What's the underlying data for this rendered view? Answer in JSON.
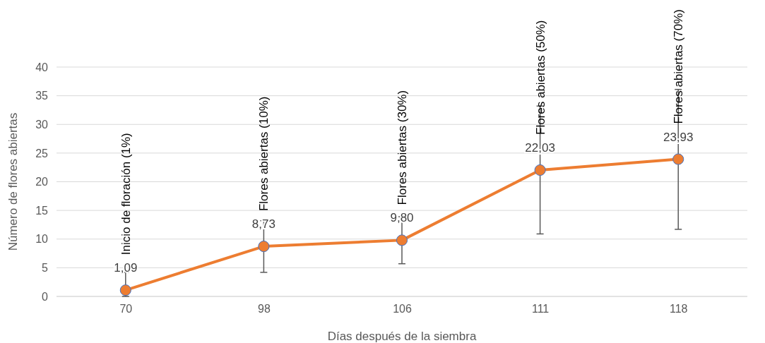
{
  "chart_data": {
    "type": "line",
    "xlabel": "Días después de la siembra",
    "ylabel": "Número de flores abiertas",
    "categories": [
      "70",
      "98",
      "106",
      "111",
      "118"
    ],
    "series": [
      {
        "color": "#ed7d31",
        "values": [
          1.09,
          8.73,
          9.8,
          22.03,
          23.93
        ],
        "value_labels": [
          "1,09",
          "8,73",
          "9,80",
          "22,03",
          "23,93"
        ],
        "errors": [
          [
            0,
            4.2
          ],
          [
            4.2,
            13.2
          ],
          [
            5.7,
            13.9
          ],
          [
            10.9,
            33.2
          ],
          [
            11.7,
            36.1
          ]
        ]
      }
    ],
    "ylim": [
      0,
      40
    ],
    "yticks": [
      0,
      5,
      10,
      15,
      20,
      25,
      30,
      35,
      40
    ],
    "grid": "y",
    "marker": "circle",
    "line_style": "solid",
    "annotations": [
      "Inicio de floración (1%)",
      "Flores abiertas (10%)",
      "Flores abiertas (30%)",
      "Flores abiertas (50%)",
      "Flores abiertas (70%)"
    ]
  }
}
